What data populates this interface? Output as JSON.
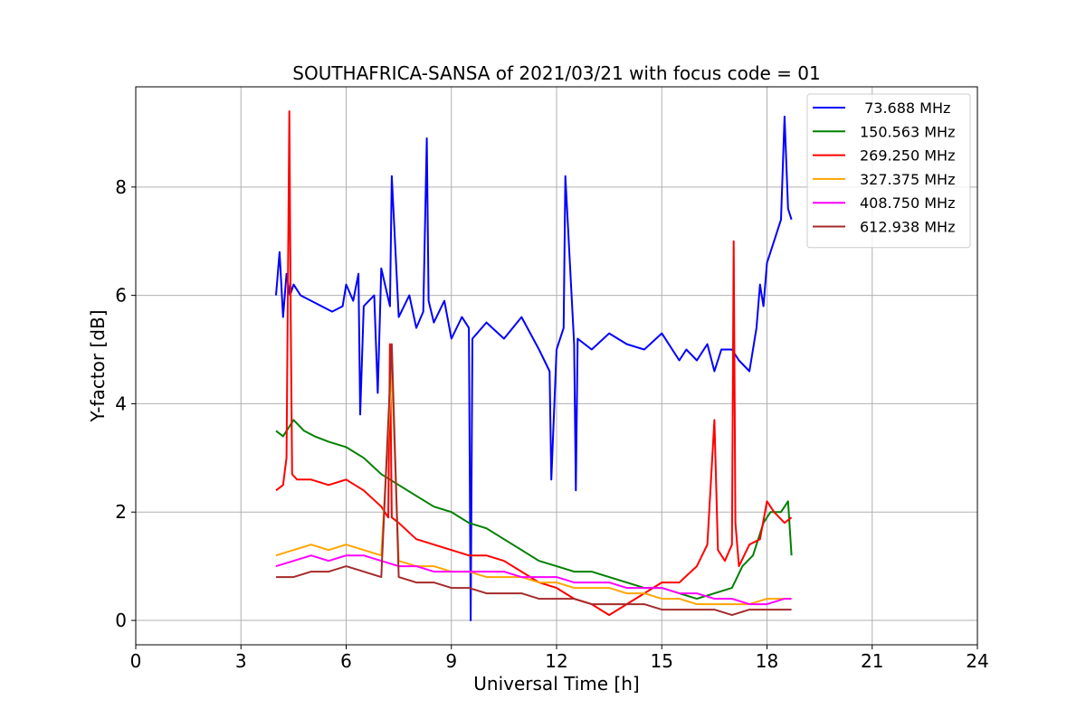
{
  "chart_data": {
    "type": "line",
    "title": "SOUTHAFRICA-SANSA of 2021/03/21 with focus code = 01",
    "xlabel": "Universal Time [h]",
    "ylabel": "Y-factor [dB]",
    "xlim": [
      0,
      24
    ],
    "ylim": [
      -0.45,
      9.85
    ],
    "xticks": [
      0,
      3,
      6,
      9,
      12,
      15,
      18,
      21,
      24
    ],
    "yticks": [
      0,
      2,
      4,
      6,
      8
    ],
    "grid": true,
    "legend_position": "top-right",
    "series": [
      {
        "name": " 73.688 MHz",
        "color": "#0000ff",
        "x": [
          4.0,
          4.1,
          4.2,
          4.3,
          4.4,
          4.5,
          4.7,
          5.0,
          5.3,
          5.6,
          5.9,
          6.0,
          6.2,
          6.35,
          6.4,
          6.5,
          6.8,
          6.9,
          7.0,
          7.25,
          7.3,
          7.5,
          7.8,
          8.0,
          8.2,
          8.3,
          8.35,
          8.5,
          8.8,
          9.0,
          9.3,
          9.5,
          9.55,
          9.6,
          10.0,
          10.5,
          11.0,
          11.5,
          11.8,
          11.85,
          12.0,
          12.2,
          12.25,
          12.5,
          12.55,
          12.6,
          13.0,
          13.5,
          14.0,
          14.5,
          15.0,
          15.5,
          15.7,
          16.0,
          16.3,
          16.5,
          16.7,
          17.0,
          17.2,
          17.5,
          17.7,
          17.8,
          17.9,
          18.0,
          18.2,
          18.4,
          18.5,
          18.6,
          18.7
        ],
        "values": [
          6.0,
          6.8,
          5.6,
          6.4,
          6.0,
          6.2,
          6.0,
          5.9,
          5.8,
          5.7,
          5.8,
          6.2,
          5.9,
          6.4,
          3.8,
          5.8,
          6.0,
          4.2,
          6.5,
          5.8,
          8.2,
          5.6,
          6.0,
          5.4,
          5.7,
          8.9,
          5.9,
          5.5,
          5.9,
          5.2,
          5.6,
          5.4,
          0.0,
          5.2,
          5.5,
          5.2,
          5.6,
          5.0,
          4.6,
          2.6,
          5.0,
          5.4,
          8.2,
          5.1,
          2.4,
          5.2,
          5.0,
          5.3,
          5.1,
          5.0,
          5.3,
          4.8,
          5.0,
          4.8,
          5.1,
          4.6,
          5.0,
          5.0,
          4.8,
          4.6,
          5.4,
          6.2,
          5.8,
          6.6,
          7.0,
          7.4,
          9.3,
          7.6,
          7.4
        ]
      },
      {
        "name": "150.563 MHz",
        "color": "#008000",
        "x": [
          4.0,
          4.2,
          4.5,
          4.8,
          5.1,
          5.5,
          6.0,
          6.5,
          7.0,
          7.5,
          8.0,
          8.5,
          9.0,
          9.5,
          10.0,
          10.5,
          11.0,
          11.5,
          12.0,
          12.5,
          13.0,
          13.5,
          14.0,
          14.5,
          15.0,
          15.5,
          16.0,
          16.5,
          17.0,
          17.3,
          17.6,
          17.9,
          18.1,
          18.4,
          18.6,
          18.7
        ],
        "values": [
          3.5,
          3.4,
          3.7,
          3.5,
          3.4,
          3.3,
          3.2,
          3.0,
          2.7,
          2.5,
          2.3,
          2.1,
          2.0,
          1.8,
          1.7,
          1.5,
          1.3,
          1.1,
          1.0,
          0.9,
          0.9,
          0.8,
          0.7,
          0.6,
          0.6,
          0.5,
          0.4,
          0.5,
          0.6,
          1.0,
          1.2,
          1.8,
          2.0,
          2.0,
          2.2,
          1.2
        ]
      },
      {
        "name": "269.250 MHz",
        "color": "#ff0000",
        "x": [
          4.0,
          4.2,
          4.3,
          4.38,
          4.42,
          4.46,
          4.6,
          5.0,
          5.5,
          6.0,
          6.5,
          7.0,
          7.2,
          7.25,
          7.3,
          7.5,
          8.0,
          8.5,
          9.0,
          9.5,
          10.0,
          10.5,
          11.0,
          11.5,
          12.0,
          12.5,
          13.0,
          13.5,
          14.0,
          14.5,
          15.0,
          15.5,
          16.0,
          16.3,
          16.5,
          16.6,
          16.8,
          17.0,
          17.05,
          17.1,
          17.2,
          17.5,
          17.8,
          18.0,
          18.2,
          18.5,
          18.7
        ],
        "values": [
          2.4,
          2.5,
          3.0,
          9.4,
          5.5,
          2.7,
          2.6,
          2.6,
          2.5,
          2.6,
          2.4,
          2.1,
          1.9,
          5.1,
          1.9,
          1.8,
          1.5,
          1.4,
          1.3,
          1.2,
          1.2,
          1.1,
          0.9,
          0.7,
          0.6,
          0.4,
          0.3,
          0.1,
          0.3,
          0.5,
          0.7,
          0.7,
          1.0,
          1.4,
          3.7,
          1.3,
          1.1,
          1.4,
          7.0,
          1.8,
          1.0,
          1.4,
          1.5,
          2.2,
          2.0,
          1.8,
          1.9
        ]
      },
      {
        "name": "327.375 MHz",
        "color": "#ffa500",
        "x": [
          4.0,
          4.5,
          5.0,
          5.5,
          6.0,
          6.5,
          7.0,
          7.3,
          7.5,
          8.0,
          8.5,
          9.0,
          9.5,
          10.0,
          10.5,
          11.0,
          11.5,
          12.0,
          12.5,
          13.0,
          13.5,
          14.0,
          14.5,
          15.0,
          15.5,
          16.0,
          16.5,
          17.0,
          17.5,
          18.0,
          18.5,
          18.7
        ],
        "values": [
          1.2,
          1.3,
          1.4,
          1.3,
          1.4,
          1.3,
          1.2,
          4.6,
          1.1,
          1.0,
          1.0,
          0.9,
          0.9,
          0.8,
          0.8,
          0.8,
          0.7,
          0.7,
          0.6,
          0.6,
          0.6,
          0.5,
          0.5,
          0.4,
          0.4,
          0.3,
          0.3,
          0.3,
          0.3,
          0.4,
          0.4,
          0.4
        ]
      },
      {
        "name": "408.750 MHz",
        "color": "#ff00ff",
        "x": [
          4.0,
          4.5,
          5.0,
          5.5,
          6.0,
          6.5,
          7.0,
          7.5,
          8.0,
          8.5,
          9.0,
          9.5,
          10.0,
          10.5,
          11.0,
          11.5,
          12.0,
          12.5,
          13.0,
          13.5,
          14.0,
          14.5,
          15.0,
          15.5,
          16.0,
          16.5,
          17.0,
          17.5,
          18.0,
          18.5,
          18.7
        ],
        "values": [
          1.0,
          1.1,
          1.2,
          1.1,
          1.2,
          1.2,
          1.1,
          1.0,
          1.0,
          0.9,
          0.9,
          0.9,
          0.9,
          0.9,
          0.8,
          0.8,
          0.8,
          0.7,
          0.7,
          0.7,
          0.6,
          0.6,
          0.6,
          0.5,
          0.5,
          0.4,
          0.4,
          0.3,
          0.3,
          0.4,
          0.4
        ]
      },
      {
        "name": "612.938 MHz",
        "color": "#a52a2a",
        "x": [
          4.0,
          4.5,
          5.0,
          5.5,
          6.0,
          6.5,
          7.0,
          7.3,
          7.5,
          8.0,
          8.5,
          9.0,
          9.5,
          10.0,
          10.5,
          11.0,
          11.5,
          12.0,
          12.5,
          13.0,
          13.5,
          14.0,
          14.5,
          15.0,
          15.5,
          16.0,
          16.5,
          17.0,
          17.5,
          18.0,
          18.5,
          18.7
        ],
        "values": [
          0.8,
          0.8,
          0.9,
          0.9,
          1.0,
          0.9,
          0.8,
          5.1,
          0.8,
          0.7,
          0.7,
          0.6,
          0.6,
          0.5,
          0.5,
          0.5,
          0.4,
          0.4,
          0.4,
          0.3,
          0.3,
          0.3,
          0.3,
          0.2,
          0.2,
          0.2,
          0.2,
          0.1,
          0.2,
          0.2,
          0.2,
          0.2
        ]
      }
    ]
  }
}
